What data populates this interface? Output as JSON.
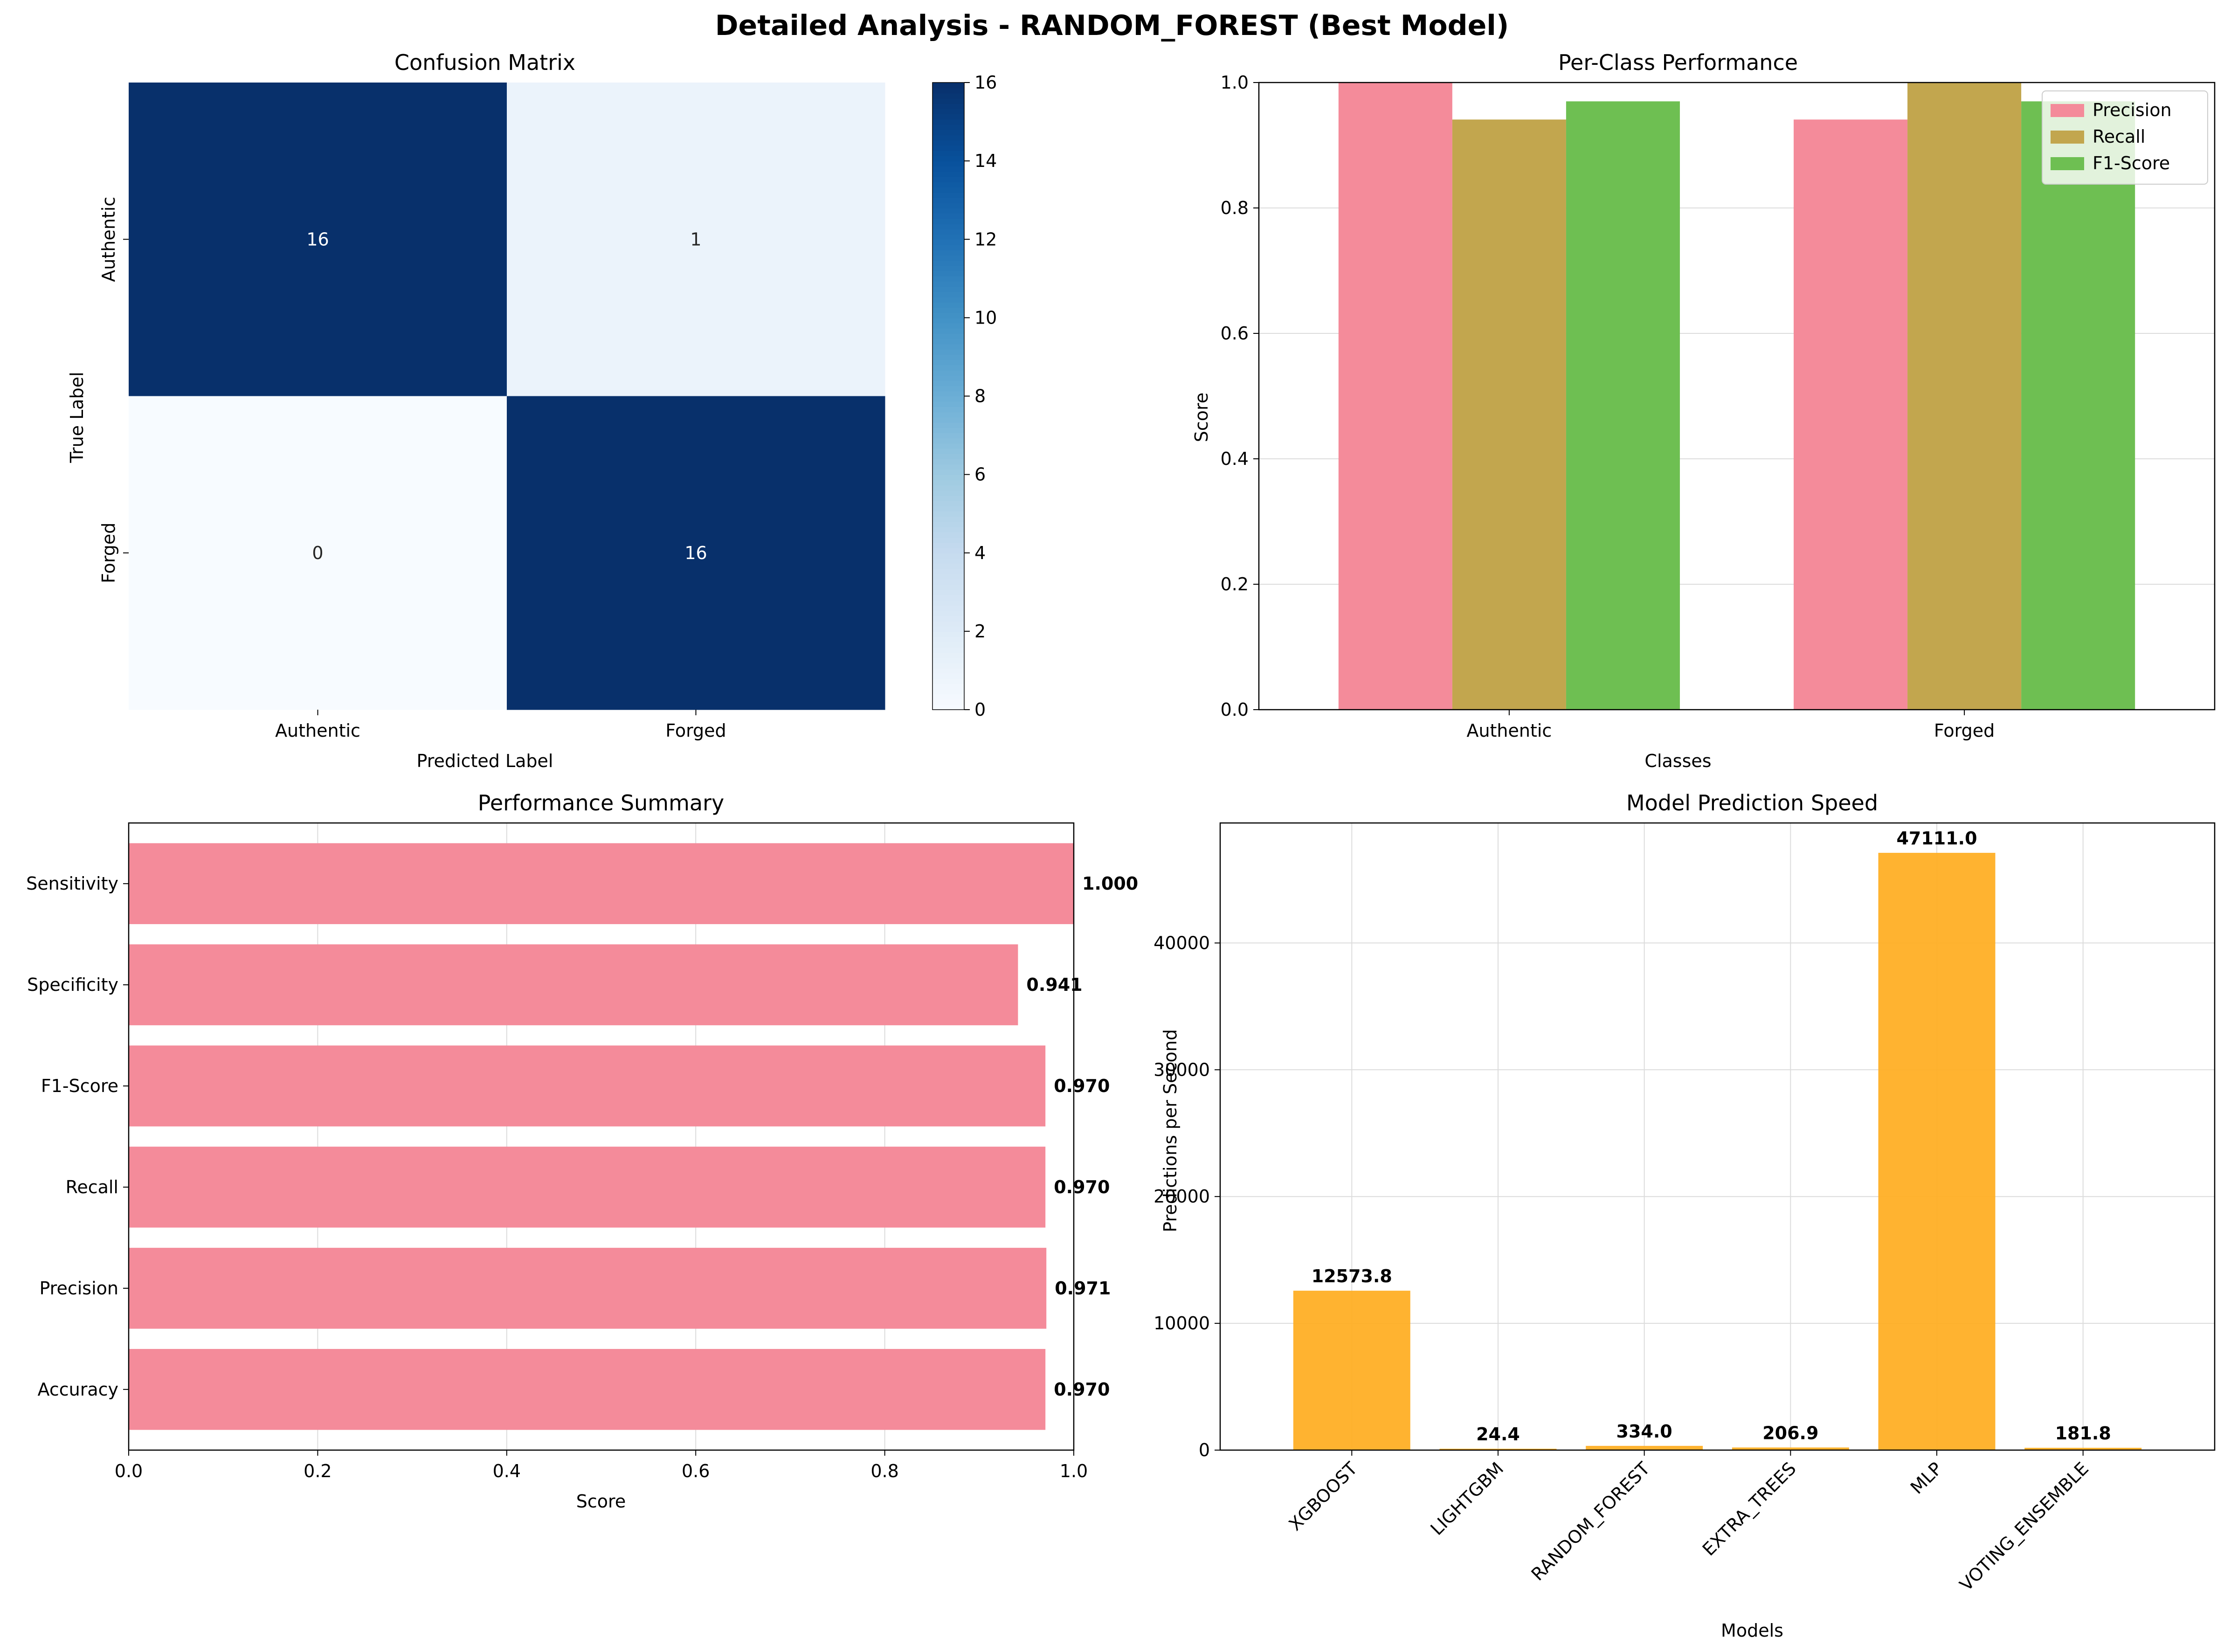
{
  "figure": {
    "title": "Detailed Analysis - RANDOM_FOREST (Best Model)"
  },
  "colors": {
    "pink": "#f48b9a",
    "olive": "#c2a64e",
    "green": "#6ebf52",
    "orange": "#ffad1e",
    "heat_dark": "#08306b",
    "heat_light": "#f7fbff"
  },
  "chart_data": [
    {
      "type": "heatmap",
      "title": "Confusion Matrix",
      "xlabel": "Predicted Label",
      "ylabel": "True Label",
      "x_categories": [
        "Authentic",
        "Forged"
      ],
      "y_categories": [
        "Authentic",
        "Forged"
      ],
      "values": [
        [
          16,
          1
        ],
        [
          0,
          16
        ]
      ],
      "colorbar": {
        "min": 0,
        "max": 16,
        "ticks": [
          0,
          2,
          4,
          6,
          8,
          10,
          12,
          14,
          16
        ],
        "colormap": "Blues"
      }
    },
    {
      "type": "bar",
      "title": "Per-Class Performance",
      "xlabel": "Classes",
      "ylabel": "Score",
      "categories": [
        "Authentic",
        "Forged"
      ],
      "series": [
        {
          "name": "Precision",
          "values": [
            1.0,
            0.941
          ]
        },
        {
          "name": "Recall",
          "values": [
            0.941,
            1.0
          ]
        },
        {
          "name": "F1-Score",
          "values": [
            0.97,
            0.97
          ]
        }
      ],
      "ylim": [
        0,
        1.0
      ],
      "yticks": [
        "0.0",
        "0.2",
        "0.4",
        "0.6",
        "0.8",
        "1.0"
      ],
      "grid": true,
      "legend": "top-right"
    },
    {
      "type": "bar",
      "orientation": "horizontal",
      "title": "Performance Summary",
      "xlabel": "Score",
      "categories": [
        "Accuracy",
        "Precision",
        "Recall",
        "F1-Score",
        "Specificity",
        "Sensitivity"
      ],
      "values": [
        0.97,
        0.971,
        0.97,
        0.97,
        0.941,
        1.0
      ],
      "labels": [
        "0.970",
        "0.971",
        "0.970",
        "0.970",
        "0.941",
        "1.000"
      ],
      "xlim": [
        0,
        1.0
      ],
      "xticks": [
        "0.0",
        "0.2",
        "0.4",
        "0.6",
        "0.8",
        "1.0"
      ],
      "grid": true
    },
    {
      "type": "bar",
      "title": "Model Prediction Speed",
      "xlabel": "Models",
      "ylabel": "Predictions per Second",
      "categories": [
        "XGBOOST",
        "LIGHTGBM",
        "RANDOM_FOREST",
        "EXTRA_TREES",
        "MLP",
        "VOTING_ENSEMBLE"
      ],
      "values": [
        12573.8,
        24.4,
        334.0,
        206.9,
        47111.0,
        181.8
      ],
      "labels": [
        "12573.8",
        "24.4",
        "334.0",
        "206.9",
        "47111.0",
        "181.8"
      ],
      "ylim": [
        0,
        49466
      ],
      "yticks": [
        0,
        10000,
        20000,
        30000,
        40000
      ],
      "grid": true
    }
  ]
}
